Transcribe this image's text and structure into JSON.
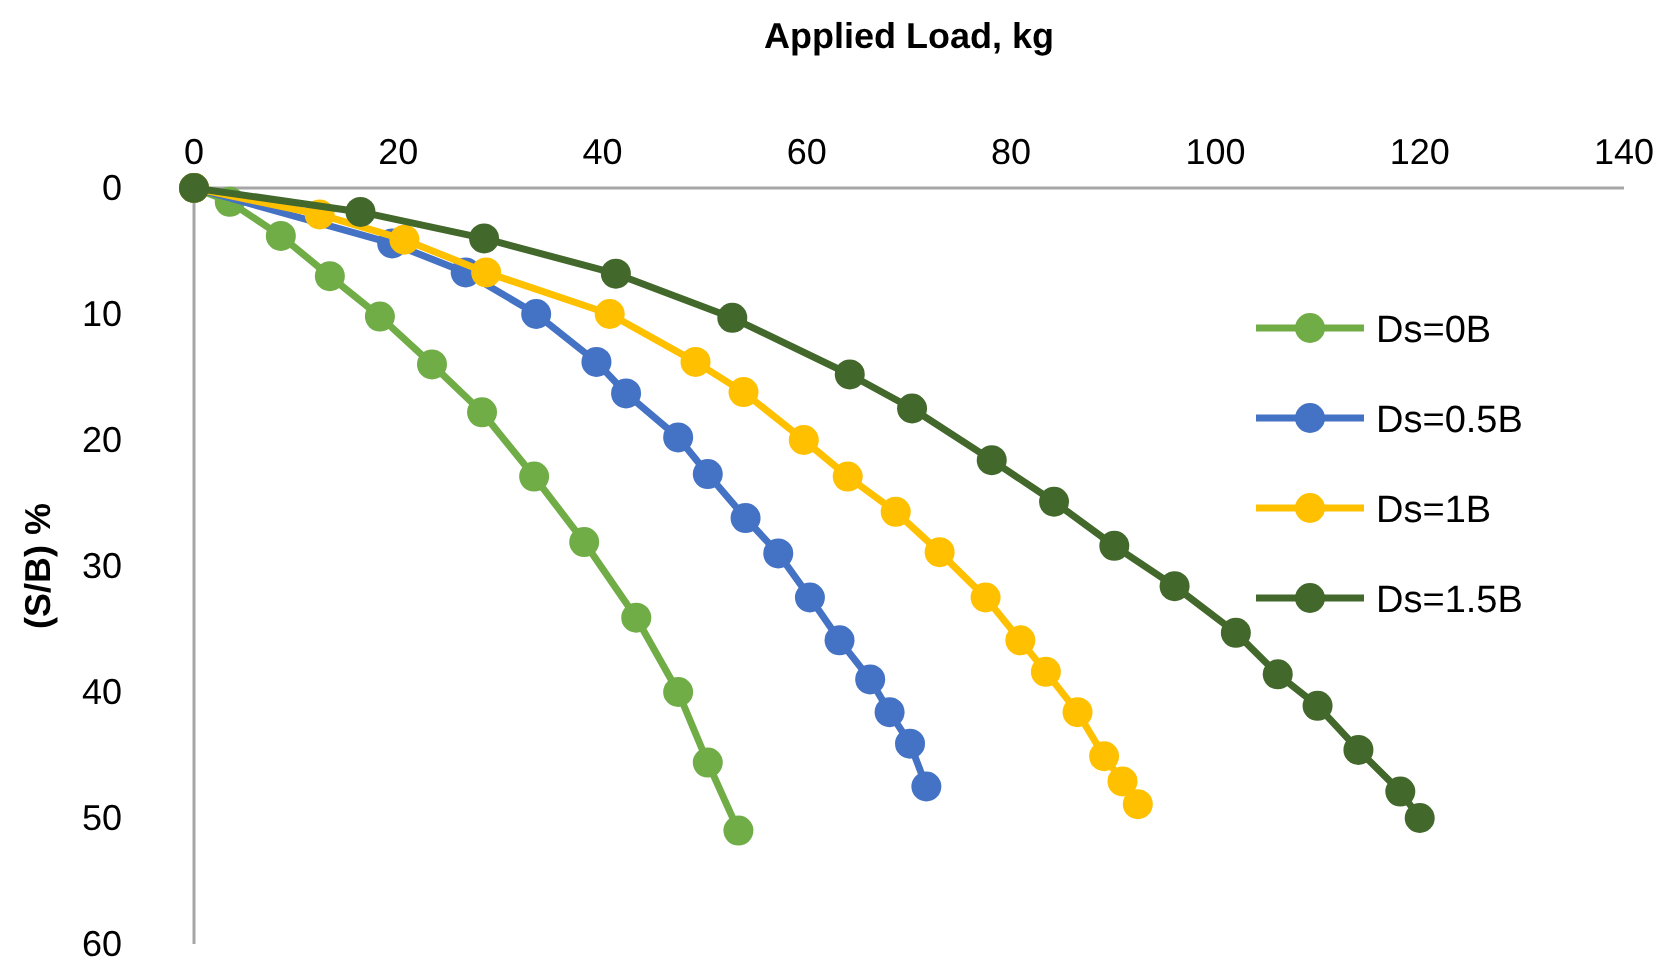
{
  "chart_data": {
    "type": "line",
    "xlabel": "Applied Load, kg",
    "ylabel": "(S/B) %",
    "xlim": [
      0,
      140
    ],
    "xticks": [
      0,
      20,
      40,
      60,
      80,
      100,
      120,
      140
    ],
    "ylim": [
      60,
      0
    ],
    "yticks": [
      0,
      10,
      20,
      30,
      40,
      50,
      60
    ],
    "grid": false,
    "legend": "top right",
    "marker": "circle",
    "line_style": "solid",
    "series": [
      {
        "name": "Ds=0B",
        "color": "#70ad47",
        "x": [
          0,
          3.5,
          8.5,
          13.3,
          18.2,
          23.3,
          28.2,
          33.3,
          38.2,
          43.3,
          47.4,
          50.3,
          53.3
        ],
        "values": [
          0,
          1.1,
          3.8,
          7,
          10.2,
          14,
          17.8,
          22.9,
          28.1,
          34.1,
          40,
          45.6,
          51
        ]
      },
      {
        "name": "Ds=0.5B",
        "color": "#4472c4",
        "x": [
          0,
          19.4,
          26.6,
          33.5,
          39.4,
          42.3,
          47.4,
          50.3,
          54,
          57.2,
          60.3,
          63.2,
          66.2,
          68.1,
          70.1,
          71.7
        ],
        "values": [
          0,
          4.4,
          6.7,
          10,
          13.8,
          16.3,
          19.8,
          22.7,
          26.2,
          29,
          32.5,
          35.9,
          39,
          41.6,
          44.1,
          47.5
        ]
      },
      {
        "name": "Ds=1B",
        "color": "#ffc000",
        "x": [
          0,
          12.3,
          20.6,
          28.6,
          40.7,
          49.1,
          53.8,
          59.7,
          64,
          68.7,
          73,
          77.5,
          80.9,
          83.4,
          86.5,
          89.1,
          90.9,
          92.4
        ],
        "values": [
          0,
          2.1,
          4.1,
          6.7,
          10,
          13.8,
          16.2,
          20,
          22.9,
          25.7,
          28.9,
          32.5,
          35.9,
          38.4,
          41.6,
          45.1,
          47.1,
          48.9
        ]
      },
      {
        "name": "Ds=1.5B",
        "color": "#43682b",
        "x": [
          0,
          16.3,
          28.4,
          41.3,
          52.7,
          64.2,
          70.3,
          78.1,
          84.2,
          90.1,
          96,
          102,
          106.1,
          110,
          114,
          118.1,
          120
        ],
        "values": [
          0,
          1.9,
          4,
          6.8,
          10.3,
          14.8,
          17.5,
          21.6,
          24.9,
          28.4,
          31.6,
          35.3,
          38.6,
          41.1,
          44.6,
          47.9,
          50
        ]
      }
    ]
  }
}
